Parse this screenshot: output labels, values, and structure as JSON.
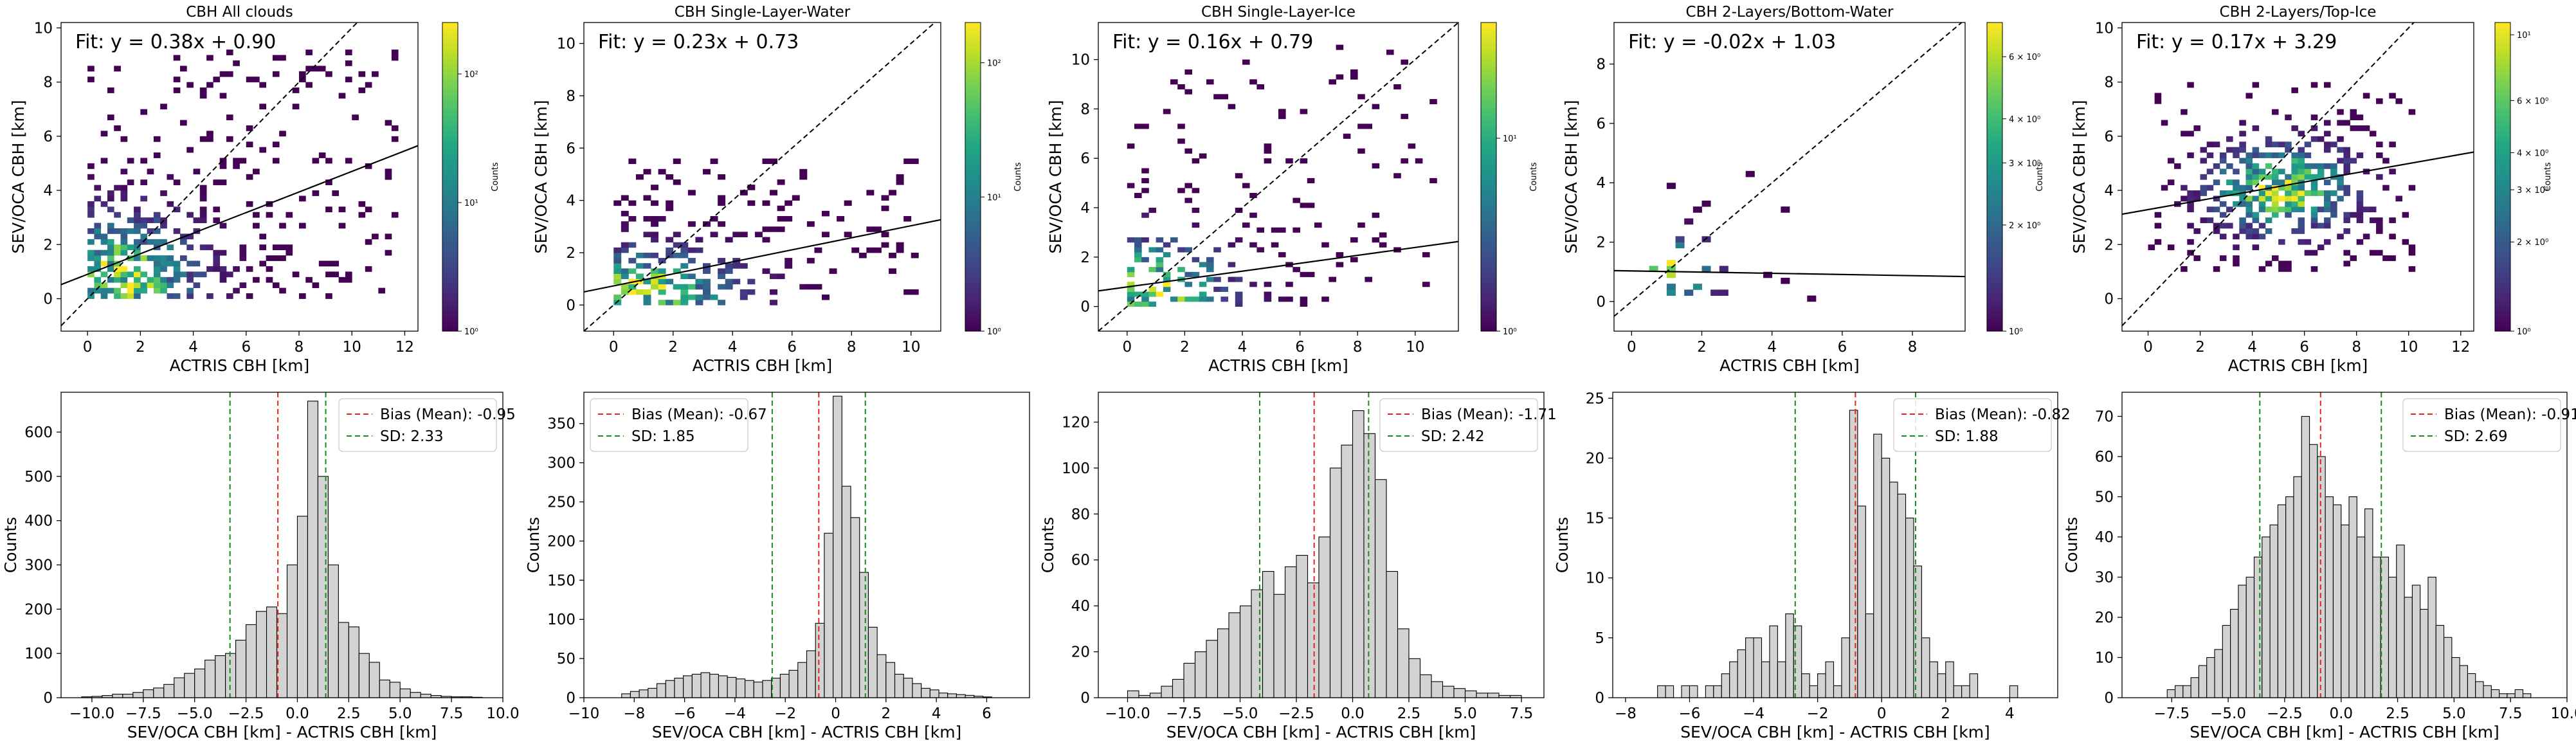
{
  "figure": {
    "layout": "2 rows x 5 columns"
  },
  "chart_data": [
    {
      "type": "heatmap",
      "title": "CBH All clouds",
      "xlabel": "ACTRIS CBH [km]",
      "ylabel": "SEV/OCA CBH [km]",
      "xlim": [
        -1,
        12.5
      ],
      "ylim": [
        -1.2,
        10.2
      ],
      "xticks": [
        "0",
        "2",
        "4",
        "6",
        "8",
        "10",
        "12"
      ],
      "xtick_values": [
        0,
        2,
        4,
        6,
        8,
        10,
        12
      ],
      "yticks": [
        "0",
        "2",
        "4",
        "6",
        "8",
        "10"
      ],
      "ytick_values": [
        0,
        2,
        4,
        6,
        8,
        10
      ],
      "fit_text": "Fit: y = 0.38x + 0.90",
      "fit": {
        "slope": 0.38,
        "intercept": 0.9
      },
      "one_to_one_line": true,
      "colorbar": {
        "label": "Counts",
        "scale": "log",
        "ticks": [
          "10⁰",
          "10¹",
          "10²"
        ],
        "tick_exponents": [
          0,
          1,
          2
        ],
        "max_exponent": 2.4
      },
      "data_extent": {
        "x": [
          0,
          11.5
        ],
        "y": [
          0,
          9
        ]
      },
      "seed": 11,
      "density_center": [
        1.0,
        0.6
      ],
      "spread": [
        3.2,
        2.6
      ],
      "fill": 0.55
    },
    {
      "type": "heatmap",
      "title": "CBH Single-Layer-Water",
      "xlabel": "ACTRIS CBH [km]",
      "ylabel": "SEV/OCA CBH [km]",
      "xlim": [
        -1,
        11
      ],
      "ylim": [
        -1,
        10.8
      ],
      "xticks": [
        "0",
        "2",
        "4",
        "6",
        "8",
        "10"
      ],
      "xtick_values": [
        0,
        2,
        4,
        6,
        8,
        10
      ],
      "yticks": [
        "0",
        "2",
        "4",
        "6",
        "8",
        "10"
      ],
      "ytick_values": [
        0,
        2,
        4,
        6,
        8,
        10
      ],
      "fit_text": "Fit: y = 0.23x + 0.73",
      "fit": {
        "slope": 0.23,
        "intercept": 0.73
      },
      "one_to_one_line": true,
      "colorbar": {
        "label": "Counts",
        "scale": "log",
        "ticks": [
          "10⁰",
          "10¹",
          "10²"
        ],
        "tick_exponents": [
          0,
          1,
          2
        ],
        "max_exponent": 2.3
      },
      "data_extent": {
        "x": [
          0,
          10.2
        ],
        "y": [
          0,
          5.5
        ]
      },
      "seed": 23,
      "density_center": [
        0.8,
        0.4
      ],
      "spread": [
        3.5,
        1.8
      ],
      "fill": 0.5
    },
    {
      "type": "heatmap",
      "title": "CBH Single-Layer-Ice",
      "xlabel": "ACTRIS CBH [km]",
      "ylabel": "SEV/OCA CBH [km]",
      "xlim": [
        -1,
        11.5
      ],
      "ylim": [
        -1,
        11.5
      ],
      "xticks": [
        "0",
        "2",
        "4",
        "6",
        "8",
        "10"
      ],
      "xtick_values": [
        0,
        2,
        4,
        6,
        8,
        10
      ],
      "yticks": [
        "0",
        "2",
        "4",
        "6",
        "8",
        "10"
      ],
      "ytick_values": [
        0,
        2,
        4,
        6,
        8,
        10
      ],
      "fit_text": "Fit: y = 0.16x + 0.79",
      "fit": {
        "slope": 0.16,
        "intercept": 0.79
      },
      "one_to_one_line": true,
      "colorbar": {
        "label": "Counts",
        "scale": "log",
        "ticks": [
          "10⁰",
          "10¹"
        ],
        "tick_exponents": [
          0,
          1
        ],
        "max_exponent": 1.6
      },
      "data_extent": {
        "x": [
          0,
          10.5
        ],
        "y": [
          0,
          10.5
        ]
      },
      "seed": 37,
      "density_center": [
        0.6,
        0.5
      ],
      "spread": [
        3.0,
        2.4
      ],
      "fill": 0.3
    },
    {
      "type": "heatmap",
      "title": "CBH 2-Layers/Bottom-Water",
      "xlabel": "ACTRIS CBH [km]",
      "ylabel": "SEV/OCA CBH [km]",
      "xlim": [
        -0.5,
        9.5
      ],
      "ylim": [
        -1,
        9.4
      ],
      "xticks": [
        "0",
        "2",
        "4",
        "6",
        "8"
      ],
      "xtick_values": [
        0,
        2,
        4,
        6,
        8
      ],
      "yticks": [
        "0",
        "2",
        "4",
        "6",
        "8"
      ],
      "ytick_values": [
        0,
        2,
        4,
        6,
        8
      ],
      "fit_text": "Fit: y = -0.02x + 1.03",
      "fit": {
        "slope": -0.02,
        "intercept": 1.03
      },
      "one_to_one_line": true,
      "colorbar": {
        "label": "Counts",
        "scale": "log",
        "ticks": [
          "10⁰",
          "2 × 10⁰",
          "3 × 10⁰",
          "4 × 10⁰",
          "6 × 10⁰"
        ],
        "tick_values": [
          1,
          2,
          3,
          4,
          6
        ],
        "max_value": 7.5
      },
      "data_extent": {
        "x": [
          0,
          8
        ],
        "y": [
          0,
          4.6
        ]
      },
      "seed": 51,
      "density_center": [
        0.7,
        0.8
      ],
      "spread": [
        1.6,
        1.4
      ],
      "fill": 0.12
    },
    {
      "type": "heatmap",
      "title": "CBH 2-Layers/Top-Ice",
      "xlabel": "ACTRIS CBH [km]",
      "ylabel": "SEV/OCA CBH [km]",
      "xlim": [
        -1,
        12.5
      ],
      "ylim": [
        -1.2,
        10.2
      ],
      "xticks": [
        "0",
        "2",
        "4",
        "6",
        "8",
        "10",
        "12"
      ],
      "xtick_values": [
        0,
        2,
        4,
        6,
        8,
        10,
        12
      ],
      "yticks": [
        "0",
        "2",
        "4",
        "6",
        "8",
        "10"
      ],
      "ytick_values": [
        0,
        2,
        4,
        6,
        8,
        10
      ],
      "fit_text": "Fit: y = 0.17x + 3.29",
      "fit": {
        "slope": 0.17,
        "intercept": 3.29
      },
      "one_to_one_line": true,
      "colorbar": {
        "label": "Counts",
        "scale": "log",
        "ticks": [
          "10⁰",
          "2 × 10⁰",
          "3 × 10⁰",
          "4 × 10⁰",
          "6 × 10⁰",
          "10¹"
        ],
        "tick_values": [
          1,
          2,
          3,
          4,
          6,
          10
        ],
        "max_value": 11
      },
      "data_extent": {
        "x": [
          0,
          10
        ],
        "y": [
          1,
          8
        ]
      },
      "seed": 73,
      "density_center": [
        5.0,
        4.0
      ],
      "spread": [
        3.0,
        1.8
      ],
      "fill": 0.55
    },
    {
      "type": "bar",
      "xlabel": "SEV/OCA CBH [km] - ACTRIS CBH [km]",
      "ylabel": "Counts",
      "xlim": [
        -11.5,
        10
      ],
      "ylim": [
        0,
        690
      ],
      "xticks": [
        "−10.0",
        "−7.5",
        "−5.0",
        "−2.5",
        "0.0",
        "2.5",
        "5.0",
        "7.5",
        "10.0"
      ],
      "xtick_values": [
        -10,
        -7.5,
        -5,
        -2.5,
        0,
        2.5,
        5,
        7.5,
        10
      ],
      "yticks": [
        "0",
        "100",
        "200",
        "300",
        "400",
        "500",
        "600"
      ],
      "ytick_values": [
        0,
        100,
        200,
        300,
        400,
        500,
        600
      ],
      "legend": [
        "Bias (Mean): -0.95",
        "SD: 2.33"
      ],
      "legend_position": "upper right",
      "mean": -0.95,
      "sd": 2.33,
      "bin_width": 0.5,
      "bin_starts": [
        -10.5,
        -10.0,
        -9.5,
        -9.0,
        -8.5,
        -8.0,
        -7.5,
        -7.0,
        -6.5,
        -6.0,
        -5.5,
        -5.0,
        -4.5,
        -4.0,
        -3.5,
        -3.0,
        -2.5,
        -2.0,
        -1.5,
        -1.0,
        -0.5,
        0.0,
        0.5,
        1.0,
        1.5,
        2.0,
        2.5,
        3.0,
        3.5,
        4.0,
        4.5,
        5.0,
        5.5,
        6.0,
        6.5,
        7.0,
        7.5,
        8.0,
        8.5
      ],
      "counts": [
        2,
        3,
        5,
        8,
        8,
        12,
        18,
        22,
        30,
        45,
        55,
        65,
        85,
        95,
        100,
        130,
        165,
        195,
        205,
        190,
        300,
        410,
        670,
        500,
        300,
        170,
        160,
        100,
        80,
        40,
        35,
        20,
        12,
        8,
        5,
        3,
        2,
        2,
        1
      ]
    },
    {
      "type": "bar",
      "xlabel": "SEV/OCA CBH [km] - ACTRIS CBH [km]",
      "ylabel": "Counts",
      "xlim": [
        -10,
        7.7
      ],
      "ylim": [
        0,
        390
      ],
      "xticks": [
        "−10",
        "−8",
        "−6",
        "−4",
        "−2",
        "0",
        "2",
        "4",
        "6"
      ],
      "xtick_values": [
        -10,
        -8,
        -6,
        -4,
        -2,
        0,
        2,
        4,
        6
      ],
      "yticks": [
        "0",
        "50",
        "100",
        "150",
        "200",
        "250",
        "300",
        "350"
      ],
      "ytick_values": [
        0,
        50,
        100,
        150,
        200,
        250,
        300,
        350
      ],
      "legend": [
        "Bias (Mean): -0.67",
        "SD: 1.85"
      ],
      "legend_position": "upper left",
      "mean": -0.67,
      "sd": 1.85,
      "bin_width": 0.35,
      "bin_starts": [
        -8.5,
        -8.15,
        -7.8,
        -7.45,
        -7.1,
        -6.75,
        -6.4,
        -6.05,
        -5.7,
        -5.35,
        -5.0,
        -4.65,
        -4.3,
        -3.95,
        -3.6,
        -3.25,
        -2.9,
        -2.55,
        -2.2,
        -1.85,
        -1.5,
        -1.15,
        -0.8,
        -0.45,
        -0.1,
        0.25,
        0.6,
        0.95,
        1.3,
        1.65,
        2.0,
        2.35,
        2.7,
        3.05,
        3.4,
        3.75,
        4.1,
        4.45,
        4.8,
        5.15,
        5.5,
        5.85
      ],
      "counts": [
        5,
        8,
        10,
        12,
        18,
        22,
        25,
        28,
        30,
        32,
        30,
        28,
        26,
        24,
        22,
        20,
        22,
        25,
        30,
        35,
        45,
        60,
        95,
        210,
        385,
        270,
        230,
        160,
        90,
        55,
        45,
        30,
        25,
        18,
        12,
        10,
        6,
        5,
        4,
        3,
        2,
        1
      ]
    },
    {
      "type": "bar",
      "xlabel": "SEV/OCA CBH [km] - ACTRIS CBH [km]",
      "ylabel": "Counts",
      "xlim": [
        -11.3,
        8.5
      ],
      "ylim": [
        0,
        133
      ],
      "xticks": [
        "−10.0",
        "−7.5",
        "−5.0",
        "−2.5",
        "0.0",
        "2.5",
        "5.0",
        "7.5"
      ],
      "xtick_values": [
        -10,
        -7.5,
        -5,
        -2.5,
        0,
        2.5,
        5,
        7.5
      ],
      "yticks": [
        "0",
        "20",
        "40",
        "60",
        "80",
        "100",
        "120"
      ],
      "ytick_values": [
        0,
        20,
        40,
        60,
        80,
        100,
        120
      ],
      "legend": [
        "Bias (Mean): -1.71",
        "SD: 2.42"
      ],
      "legend_position": "upper right",
      "mean": -1.71,
      "sd": 2.42,
      "bin_width": 0.5,
      "bin_starts": [
        -10.0,
        -9.5,
        -9.0,
        -8.5,
        -8.0,
        -7.5,
        -7.0,
        -6.5,
        -6.0,
        -5.5,
        -5.0,
        -4.5,
        -4.0,
        -3.5,
        -3.0,
        -2.5,
        -2.0,
        -1.5,
        -1.0,
        -0.5,
        0.0,
        0.5,
        1.0,
        1.5,
        2.0,
        2.5,
        3.0,
        3.5,
        4.0,
        4.5,
        5.0,
        5.5,
        6.0,
        6.5,
        7.0
      ],
      "counts": [
        3,
        1,
        2,
        5,
        8,
        15,
        20,
        25,
        30,
        37,
        40,
        47,
        55,
        45,
        57,
        62,
        50,
        70,
        100,
        110,
        125,
        115,
        95,
        55,
        30,
        17,
        10,
        7,
        5,
        4,
        3,
        2,
        2,
        1,
        1
      ]
    },
    {
      "type": "bar",
      "xlabel": "SEV/OCA CBH [km] - ACTRIS CBH [km]",
      "ylabel": "Counts",
      "xlim": [
        -8.4,
        5.5
      ],
      "ylim": [
        0,
        25.5
      ],
      "xticks": [
        "−8",
        "−6",
        "−4",
        "−2",
        "0",
        "2",
        "4"
      ],
      "xtick_values": [
        -8,
        -6,
        -4,
        -2,
        0,
        2,
        4
      ],
      "yticks": [
        "0",
        "5",
        "10",
        "15",
        "20",
        "25"
      ],
      "ytick_values": [
        0,
        5,
        10,
        15,
        20,
        25
      ],
      "legend": [
        "Bias (Mean): -0.82",
        "SD: 1.88"
      ],
      "legend_position": "upper right",
      "mean": -0.82,
      "sd": 1.88,
      "bin_width": 0.25,
      "bin_starts": [
        -7.0,
        -6.75,
        -6.5,
        -6.25,
        -6.0,
        -5.75,
        -5.5,
        -5.25,
        -5.0,
        -4.75,
        -4.5,
        -4.25,
        -4.0,
        -3.75,
        -3.5,
        -3.25,
        -3.0,
        -2.75,
        -2.5,
        -2.25,
        -2.0,
        -1.75,
        -1.5,
        -1.25,
        -1.0,
        -0.75,
        -0.5,
        -0.25,
        0.0,
        0.25,
        0.5,
        0.75,
        1.0,
        1.25,
        1.5,
        1.75,
        2.0,
        2.25,
        2.5,
        2.75,
        3.0,
        3.25,
        3.5,
        3.75,
        4.0
      ],
      "counts": [
        1,
        1,
        0,
        1,
        1,
        0,
        1,
        1,
        2,
        3,
        4,
        5,
        5,
        3,
        6,
        3,
        7,
        6,
        2,
        1,
        2,
        3,
        1,
        5,
        24,
        16,
        7,
        22,
        20,
        18,
        17,
        15,
        11,
        5,
        3,
        2,
        3,
        1,
        1,
        2,
        0,
        0,
        0,
        0,
        1
      ]
    },
    {
      "type": "bar",
      "xlabel": "SEV/OCA CBH [km] - ACTRIS CBH [km]",
      "ylabel": "Counts",
      "xlim": [
        -9.7,
        10
      ],
      "ylim": [
        0,
        76
      ],
      "xticks": [
        "−7.5",
        "−5.0",
        "−2.5",
        "0.0",
        "2.5",
        "5.0",
        "7.5",
        "10.0"
      ],
      "xtick_values": [
        -7.5,
        -5,
        -2.5,
        0,
        2.5,
        5,
        7.5,
        10
      ],
      "yticks": [
        "0",
        "10",
        "20",
        "30",
        "40",
        "50",
        "60",
        "70"
      ],
      "ytick_values": [
        0,
        10,
        20,
        30,
        40,
        50,
        60,
        70
      ],
      "legend": [
        "Bias (Mean): -0.91",
        "SD: 2.69"
      ],
      "legend_position": "upper right",
      "mean": -0.91,
      "sd": 2.69,
      "bin_width": 0.35,
      "bin_starts": [
        -7.7,
        -7.35,
        -7.0,
        -6.65,
        -6.3,
        -5.95,
        -5.6,
        -5.25,
        -4.9,
        -4.55,
        -4.2,
        -3.85,
        -3.5,
        -3.15,
        -2.8,
        -2.45,
        -2.1,
        -1.75,
        -1.4,
        -1.05,
        -0.7,
        -0.35,
        0.0,
        0.35,
        0.7,
        1.05,
        1.4,
        1.75,
        2.1,
        2.45,
        2.8,
        3.15,
        3.5,
        3.85,
        4.2,
        4.55,
        4.9,
        5.25,
        5.6,
        5.95,
        6.3,
        6.65,
        7.0,
        7.35,
        7.7,
        8.05
      ],
      "counts": [
        2,
        3,
        3,
        5,
        8,
        10,
        12,
        18,
        22,
        28,
        30,
        35,
        40,
        43,
        48,
        50,
        55,
        70,
        63,
        60,
        50,
        48,
        43,
        50,
        40,
        47,
        35,
        35,
        30,
        38,
        25,
        28,
        22,
        30,
        18,
        15,
        10,
        8,
        6,
        4,
        3,
        2,
        1,
        1,
        2,
        1
      ]
    }
  ]
}
